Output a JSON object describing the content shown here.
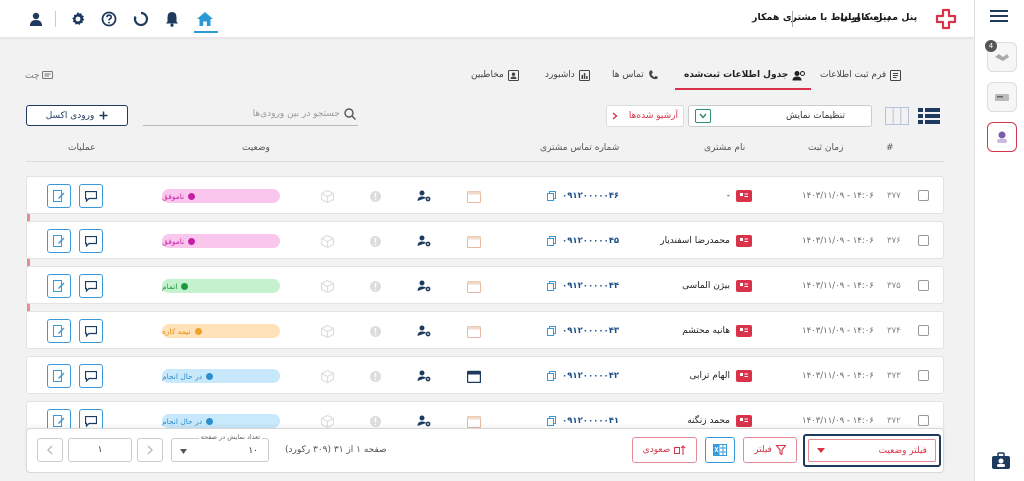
{
  "header": {
    "title": "پنل مدیریت ارتباط با مشتری همکار",
    "brand": "پناه کاویان",
    "colors": {
      "accent": "#d8334a",
      "primary": "#3a9ad9",
      "navy": "#1e3a5f"
    }
  },
  "tabs": [
    {
      "label": "فرم ثبت اطلاعات",
      "icon": "form-icon"
    },
    {
      "label": "جدول اطلاعات ثبت‌شده",
      "icon": "users-icon",
      "active": true
    },
    {
      "label": "تماس ها",
      "icon": "phone-icon"
    },
    {
      "label": "داشبورد",
      "icon": "chart-icon"
    },
    {
      "label": "مخاطبین",
      "icon": "contact-icon"
    }
  ],
  "chat_label": "چت",
  "toolbar": {
    "display_settings": "تنظیمات نمایش",
    "archived": "آرشیو شده‌ها",
    "search_placeholder": "جستجو در بین ورودی‌ها",
    "excel_button": "ورودی اکسل"
  },
  "table": {
    "headers": {
      "index": "#",
      "time": "زمان ثبت",
      "name": "نام مشتری",
      "phone": "شماره تماس مشتری",
      "status": "وضعیت",
      "ops": "عملیات"
    },
    "rows": [
      {
        "id": "۳۷۷",
        "time": "۱۴۰۳/۱۱/۰۹ - ۱۴:۰۶",
        "name": "-",
        "phone": "۰۹۱۲۰۰۰۰۰۴۶",
        "status": "ناموفق",
        "status_type": "fail"
      },
      {
        "id": "۳۷۶",
        "time": "۱۴۰۳/۱۱/۰۹ - ۱۴:۰۶",
        "name": "محمدرضا اسفندیار",
        "phone": "۰۹۱۲۰۰۰۰۰۴۵",
        "status": "ناموفق",
        "status_type": "fail"
      },
      {
        "id": "۳۷۵",
        "time": "۱۴۰۳/۱۱/۰۹ - ۱۴:۰۶",
        "name": "بیژن الماسی",
        "phone": "۰۹۱۲۰۰۰۰۰۴۴",
        "status": "اتمام",
        "status_type": "done"
      },
      {
        "id": "۳۷۴",
        "time": "۱۴۰۳/۱۱/۰۹ - ۱۴:۰۶",
        "name": "هانیه محتشم",
        "phone": "۰۹۱۲۰۰۰۰۰۴۳",
        "status": "نیمه کاره",
        "status_type": "half"
      },
      {
        "id": "۳۷۳",
        "time": "۱۴۰۳/۱۱/۰۹ - ۱۴:۰۶",
        "name": "الهام ترابی",
        "phone": "۰۹۱۲۰۰۰۰۰۴۲",
        "status": "در حال انجام",
        "status_type": "progress"
      },
      {
        "id": "۳۷۲",
        "time": "۱۴۰۳/۱۱/۰۹ - ۱۴:۰۶",
        "name": "محمد زنگنه",
        "phone": "۰۹۱۲۰۰۰۰۰۴۱",
        "status": "در حال انجام",
        "status_type": "progress"
      }
    ]
  },
  "footer": {
    "status_filter": "فیلتر وضعیت",
    "filter": "فیلتر",
    "sort": "صعودی",
    "page_info": "صفحه ۱ از ۳۱ (۳۰۹ رکورد)",
    "per_page_label": "تعداد نمایش در صفحه",
    "per_page_value": "۱۰",
    "page_input": "۱"
  }
}
